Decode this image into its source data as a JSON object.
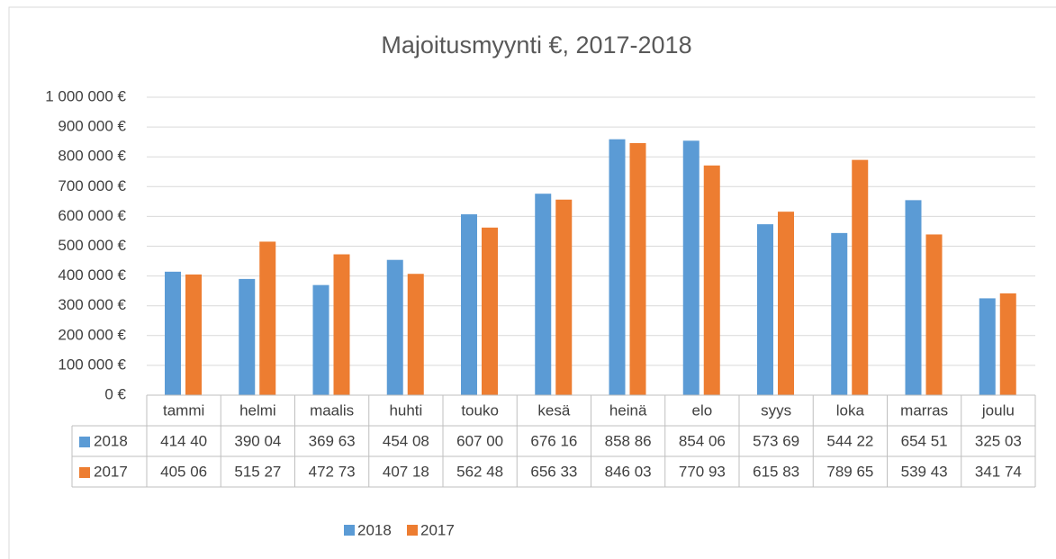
{
  "chart_data": {
    "type": "bar",
    "title": "Majoitusmyynti €, 2017-2018",
    "categories": [
      "tammi",
      "helmi",
      "maalis",
      "huhti",
      "touko",
      "kesä",
      "heinä",
      "elo",
      "syys",
      "loka",
      "marras",
      "joulu"
    ],
    "series": [
      {
        "name": "2018",
        "color": "#5b9bd5",
        "values": [
          414400,
          390040,
          369630,
          454080,
          607000,
          676160,
          858860,
          854060,
          573690,
          544220,
          654510,
          325030
        ],
        "value_labels": [
          "414 40",
          "390 04",
          "369 63",
          "454 08",
          "607 00",
          "676 16",
          "858 86",
          "854 06",
          "573 69",
          "544 22",
          "654 51",
          "325 03"
        ]
      },
      {
        "name": "2017",
        "color": "#ed7d31",
        "values": [
          405060,
          515270,
          472730,
          407180,
          562480,
          656330,
          846030,
          770930,
          615830,
          789650,
          539430,
          341740
        ],
        "value_labels": [
          "405 06",
          "515 27",
          "472 73",
          "407 18",
          "562 48",
          "656 33",
          "846 03",
          "770 93",
          "615 83",
          "789 65",
          "539 43",
          "341 74"
        ]
      }
    ],
    "ylim": [
      0,
      1000000
    ],
    "yticks": [
      {
        "value": 0,
        "label": "0 €"
      },
      {
        "value": 100000,
        "label": "100 000 €"
      },
      {
        "value": 200000,
        "label": "200 000 €"
      },
      {
        "value": 300000,
        "label": "300 000 €"
      },
      {
        "value": 400000,
        "label": "400 000 €"
      },
      {
        "value": 500000,
        "label": "500 000 €"
      },
      {
        "value": 600000,
        "label": "600 000 €"
      },
      {
        "value": 700000,
        "label": "700 000 €"
      },
      {
        "value": 800000,
        "label": "800 000 €"
      },
      {
        "value": 900000,
        "label": "900 000 €"
      },
      {
        "value": 1000000,
        "label": "1 000 000 €"
      }
    ],
    "grid": true,
    "legend": "bottom"
  }
}
